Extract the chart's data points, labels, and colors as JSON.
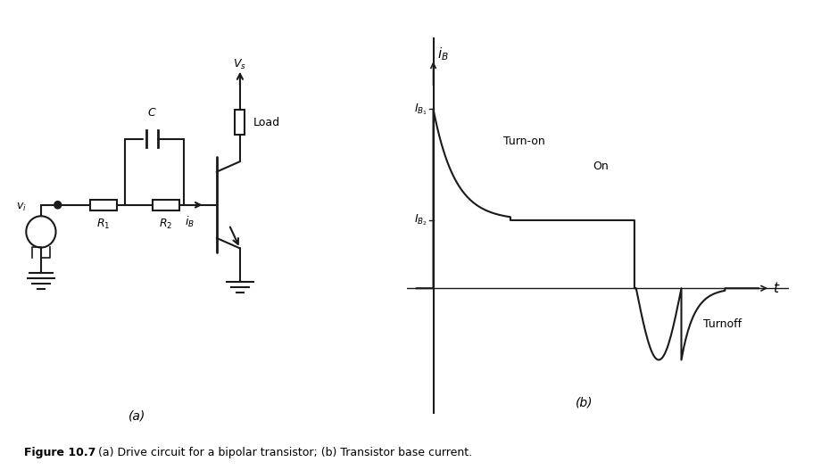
{
  "fig_width": 9.11,
  "fig_height": 5.27,
  "bg_color": "#ffffff",
  "line_color": "#1a1a1a",
  "caption_bold": "Figure 10.7",
  "caption_normal": " (a) Drive circuit for a bipolar transistor; (b) Transistor base current.",
  "label_a": "(a)",
  "label_b": "(b)",
  "graph_xlabel": "t",
  "graph_ylabel_top": "$i_B$",
  "graph_label_IB1": "$I_{B_1}$",
  "graph_label_IB2": "$I_{B_2}$",
  "graph_label_turnon": "Turn-on",
  "graph_label_on": "On",
  "graph_label_turnoff": "Turnoff",
  "circuit_labels": {
    "vs": "$V_s$",
    "load": "Load",
    "c": "$C$",
    "r1": "$R_1$",
    "r2": "$R_2$",
    "ib": "$i_B$",
    "vi": "$v_i$"
  }
}
